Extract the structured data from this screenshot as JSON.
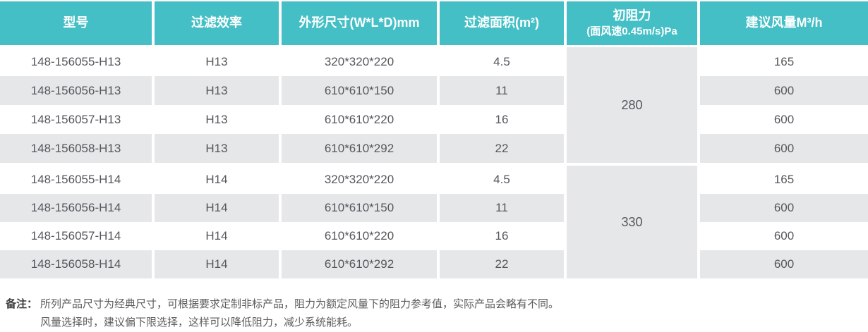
{
  "colors": {
    "header_bg": "#43bfc5",
    "header_text": "#ffffff",
    "row_alt_bg": "#e6e7e8",
    "cell_text": "#55575c",
    "note_text": "#5b5b5b",
    "note_label_text": "#3f3f3f"
  },
  "table": {
    "headers": {
      "model": "型号",
      "efficiency": "过滤效率",
      "dimensions": "外形尺寸(W*L*D)mm",
      "area": "过滤面积(m²)",
      "resistance": "初阻力",
      "resistance_sub": "(面风速0.45m/s)Pa",
      "airflow": "建议风量M³/h"
    },
    "groups": [
      {
        "resistance": "280",
        "rows": [
          {
            "model": "148-156055-H13",
            "efficiency": "H13",
            "dimensions": "320*320*220",
            "area": "4.5",
            "airflow": "165"
          },
          {
            "model": "148-156056-H13",
            "efficiency": "H13",
            "dimensions": "610*610*150",
            "area": "11",
            "airflow": "600"
          },
          {
            "model": "148-156057-H13",
            "efficiency": "H13",
            "dimensions": "610*610*220",
            "area": "16",
            "airflow": "600"
          },
          {
            "model": "148-156058-H13",
            "efficiency": "H13",
            "dimensions": "610*610*292",
            "area": "22",
            "airflow": "600"
          }
        ]
      },
      {
        "resistance": "330",
        "rows": [
          {
            "model": "148-156055-H14",
            "efficiency": "H14",
            "dimensions": "320*320*220",
            "area": "4.5",
            "airflow": "165"
          },
          {
            "model": "148-156056-H14",
            "efficiency": "H14",
            "dimensions": "610*610*150",
            "area": "11",
            "airflow": "600"
          },
          {
            "model": "148-156057-H14",
            "efficiency": "H14",
            "dimensions": "610*610*220",
            "area": "16",
            "airflow": "600"
          },
          {
            "model": "148-156058-H14",
            "efficiency": "H14",
            "dimensions": "610*610*292",
            "area": "22",
            "airflow": "600"
          }
        ]
      }
    ]
  },
  "notes": {
    "label": "备注：",
    "line1": "所列产品尺寸为经典尺寸，可根据要求定制非标产品，阻力为额定风量下的阻力参考值，实际产品会略有不同。",
    "line2": "风量选择时，建议偏下限选择，这样可以降低阻力，减少系统能耗。"
  }
}
